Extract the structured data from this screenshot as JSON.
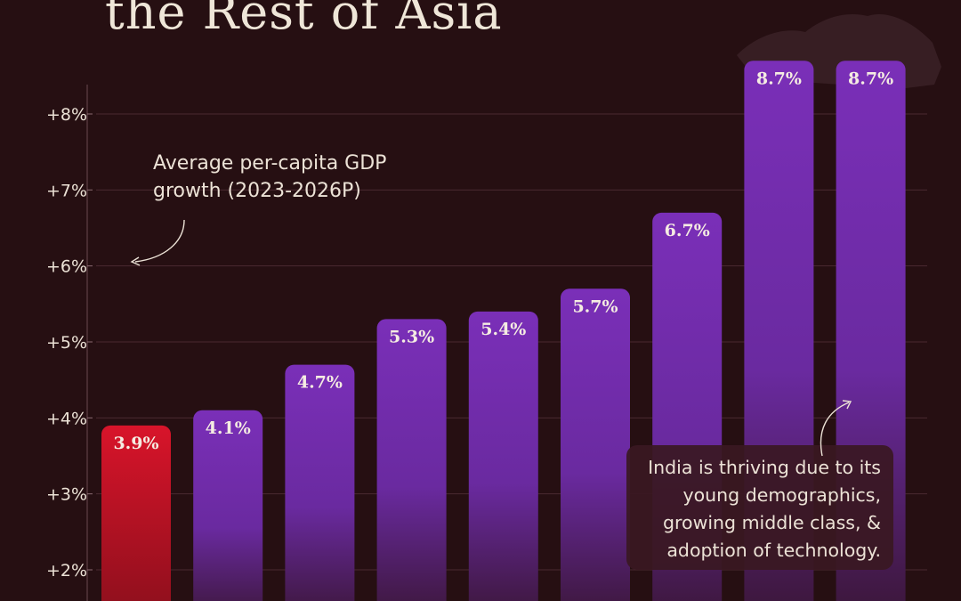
{
  "title": "the Rest of Asia",
  "colors": {
    "background": "#260f12",
    "bar_purple_top": "#7a2fb8",
    "bar_purple_bottom": "#3a1636",
    "bar_red_top": "#d8142a",
    "bar_red_bottom": "#8a0f1c",
    "grid": "#4a2a30",
    "text": "#ece2d6"
  },
  "annotation": {
    "line1": "Average per-capita GDP",
    "line2": "growth (2023-2026P)"
  },
  "india_note": {
    "line1": "India is thriving due to its",
    "line2": "young demographics,",
    "line3": "growing middle class, &",
    "line4": "adoption of technology."
  },
  "chart_data": {
    "type": "bar",
    "title": "",
    "xlabel": "",
    "ylabel": "Average per-capita GDP growth (2023-2026P)",
    "ylim": [
      1.6,
      8.8
    ],
    "yticks": [
      2,
      3,
      4,
      5,
      6,
      7,
      8
    ],
    "ytick_labels": [
      "+2%",
      "+3%",
      "+4%",
      "+5%",
      "+6%",
      "+7%",
      "+8%"
    ],
    "grid": true,
    "values": [
      3.9,
      4.1,
      4.7,
      5.3,
      5.4,
      5.7,
      6.7,
      8.7,
      8.7
    ],
    "data_labels": [
      "3.9%",
      "4.1%",
      "4.7%",
      "5.3%",
      "5.4%",
      "5.7%",
      "6.7%",
      "8.7%",
      "8.7%"
    ],
    "highlight_index": 0
  }
}
